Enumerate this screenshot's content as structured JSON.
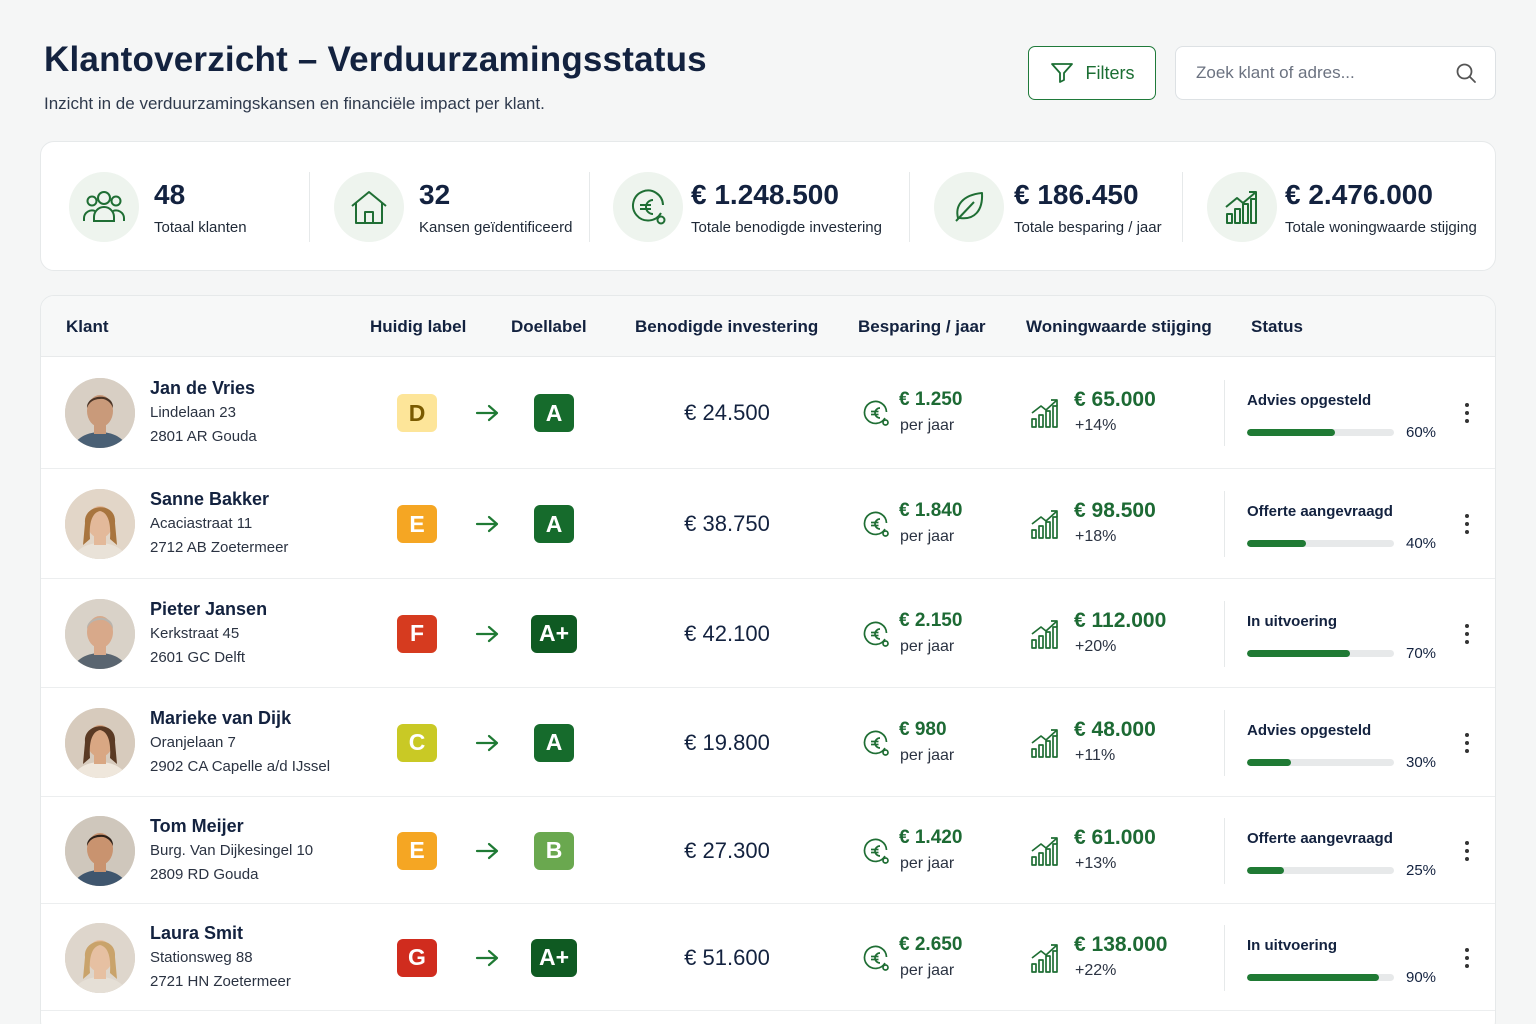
{
  "header": {
    "title": "Klantoverzicht – Verduurzamingsstatus",
    "subtitle": "Inzicht in de verduurzamingskansen en financiële impact per klant."
  },
  "toolbar": {
    "filters_label": "Filters",
    "search_placeholder": "Zoek klant of adres..."
  },
  "stats": [
    {
      "value": "48",
      "label": "Totaal klanten",
      "icon": "users-icon"
    },
    {
      "value": "32",
      "label": "Kansen geïdentificeerd",
      "icon": "house-icon"
    },
    {
      "value": "€ 1.248.500",
      "label": "Totale benodigde investering",
      "icon": "euro-coin-icon"
    },
    {
      "value": "€ 186.450",
      "label": "Totale besparing / jaar",
      "icon": "leaf-icon"
    },
    {
      "value": "€ 2.476.000",
      "label": "Totale woningwaarde stijging",
      "icon": "growth-chart-icon"
    }
  ],
  "table": {
    "columns": {
      "client": "Klant",
      "current_label": "Huidig label",
      "target_label": "Doellabel",
      "investment": "Benodigde investering",
      "savings": "Besparing / jaar",
      "value_increase": "Woningwaarde stijging",
      "status": "Status"
    },
    "rows": [
      {
        "name": "Jan de Vries",
        "street": "Lindelaan 23",
        "city": "2801 AR Gouda",
        "current": "D",
        "target": "A",
        "investment": "€ 24.500",
        "savings": "€ 1.250",
        "savings_sub": "per jaar",
        "value": "€ 65.000",
        "value_pct": "+14%",
        "status": "Advies opgesteld",
        "progress": 60,
        "progress_label": "60%"
      },
      {
        "name": "Sanne Bakker",
        "street": "Acaciastraat 11",
        "city": "2712 AB Zoetermeer",
        "current": "E",
        "target": "A",
        "investment": "€ 38.750",
        "savings": "€ 1.840",
        "savings_sub": "per jaar",
        "value": "€ 98.500",
        "value_pct": "+18%",
        "status": "Offerte aangevraagd",
        "progress": 40,
        "progress_label": "40%"
      },
      {
        "name": "Pieter Jansen",
        "street": "Kerkstraat 45",
        "city": "2601 GC Delft",
        "current": "F",
        "target": "A+",
        "investment": "€ 42.100",
        "savings": "€ 2.150",
        "savings_sub": "per jaar",
        "value": "€ 112.000",
        "value_pct": "+20%",
        "status": "In uitvoering",
        "progress": 70,
        "progress_label": "70%"
      },
      {
        "name": "Marieke van Dijk",
        "street": "Oranjelaan 7",
        "city": "2902 CA Capelle a/d IJssel",
        "current": "C",
        "target": "A",
        "investment": "€ 19.800",
        "savings": "€ 980",
        "savings_sub": "per jaar",
        "value": "€ 48.000",
        "value_pct": "+11%",
        "status": "Advies opgesteld",
        "progress": 30,
        "progress_label": "30%"
      },
      {
        "name": "Tom Meijer",
        "street": "Burg. Van Dijkesingel 10",
        "city": "2809 RD Gouda",
        "current": "E",
        "target": "B",
        "investment": "€ 27.300",
        "savings": "€ 1.420",
        "savings_sub": "per jaar",
        "value": "€ 61.000",
        "value_pct": "+13%",
        "status": "Offerte aangevraagd",
        "progress": 25,
        "progress_label": "25%"
      },
      {
        "name": "Laura Smit",
        "street": "Stationsweg 88",
        "city": "2721 HN Zoetermeer",
        "current": "G",
        "target": "A+",
        "investment": "€ 51.600",
        "savings": "€ 2.650",
        "savings_sub": "per jaar",
        "value": "€ 138.000",
        "value_pct": "+22%",
        "status": "In uitvoering",
        "progress": 90,
        "progress_label": "90%"
      }
    ]
  },
  "label_colors": {
    "A+": "#0f5a22",
    "A": "#166b2c",
    "B": "#6aa84f",
    "C": "#c9c925",
    "D": "#fde599",
    "E": "#f5a623",
    "F": "#d63b1f",
    "G": "#d02c1e"
  },
  "label_text_colors": {
    "D": "#7a5a00"
  },
  "accent_color": "#1f7a34"
}
